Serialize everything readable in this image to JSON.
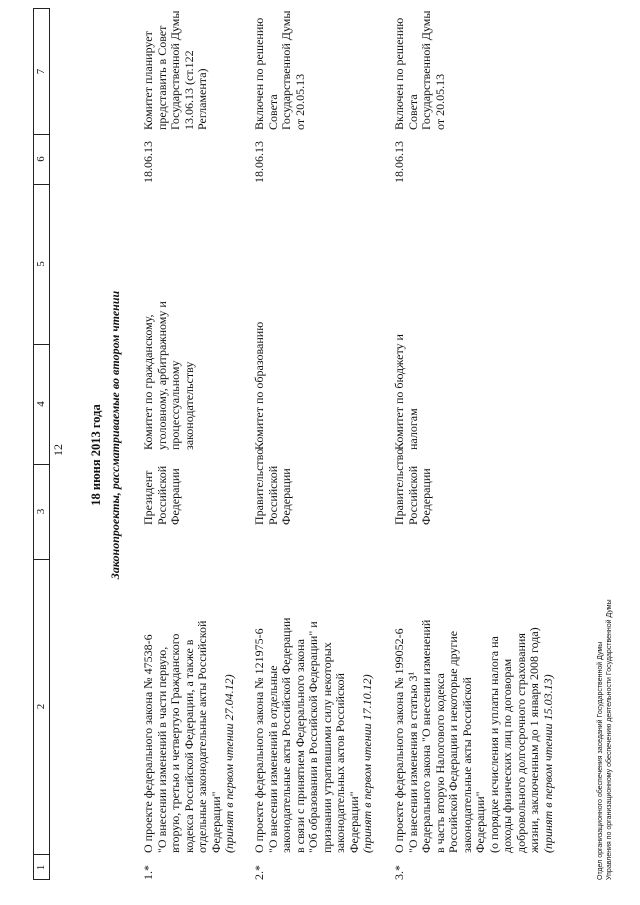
{
  "page_number": "12",
  "table_header": [
    "1",
    "2",
    "3",
    "4",
    "5",
    "6",
    "7"
  ],
  "date_title": "18 июня 2013 года",
  "section_title": "Законопроекты, рассматриваемые во втором чтении",
  "rows": [
    {
      "num": "1.*",
      "bill_lines": [
        "О проекте федерального закона № 47538-6",
        "\"О внесении изменений в части первую,",
        "вторую, третью и четвертую Гражданского",
        "кодекса Российской Федерации, а также в",
        "отдельные законодательные акты Российской",
        "Федерации\""
      ],
      "first_reading": "(принят в первом чтении 27.04.12)",
      "initiator": "Президент Российской Федерации",
      "committee": "Комитет по гражданскому, уголовному, арбитражному и процессуальному законодательству",
      "col5": "",
      "date": "18.06.13",
      "note": "Комитет планирует представить в Совет Государственной Думы 13.06.13 (ст.122 Регламента)"
    },
    {
      "num": "2.*",
      "bill_lines": [
        "О проекте федерального закона № 121975-6",
        "\"О внесении изменений в отдельные",
        "законодательные акты Российской Федерации",
        "в связи с принятием Федерального закона",
        "\"Об образовании в Российской Федерации\" и",
        "признании утратившими силу некоторых",
        "законодательных актов Российской",
        "Федерации\""
      ],
      "first_reading": "(принят в первом чтении 17.10.12)",
      "initiator": "Правительство Российской Федерации",
      "committee": "Комитет по образованию",
      "col5": "",
      "date": "18.06.13",
      "note": "Включен по решению Совета Государственной Думы от 20.05.13"
    },
    {
      "num": "3.*",
      "bill_lines": [
        "О проекте федерального закона № 199052-6",
        "\"О внесении изменения в статью 3¹",
        "Федерального закона \"О внесении изменений",
        "в часть вторую Налогового кодекса",
        "Российской Федерации и некоторые другие",
        "законодательные акты Российской",
        "Федерации\"",
        "(о порядке исчисления и уплаты налога на",
        "доходы физических лиц по договорам",
        "добровольного долгосрочного страхования",
        "жизни, заключенным до 1 января 2008 года)"
      ],
      "first_reading": "(принят в первом чтении 15.03.13)",
      "initiator": "Правительство Российской Федерации",
      "committee": "Комитет по бюджету и налогам",
      "col5": "",
      "date": "18.06.13",
      "note": "Включен по решению Совета Государственной Думы от 20.05.13"
    }
  ],
  "footer": [
    "Отдел организационного обеспечения заседаний Государственной Думы",
    "Управления по организационному обеспечению деятельности Государственной Думы"
  ]
}
